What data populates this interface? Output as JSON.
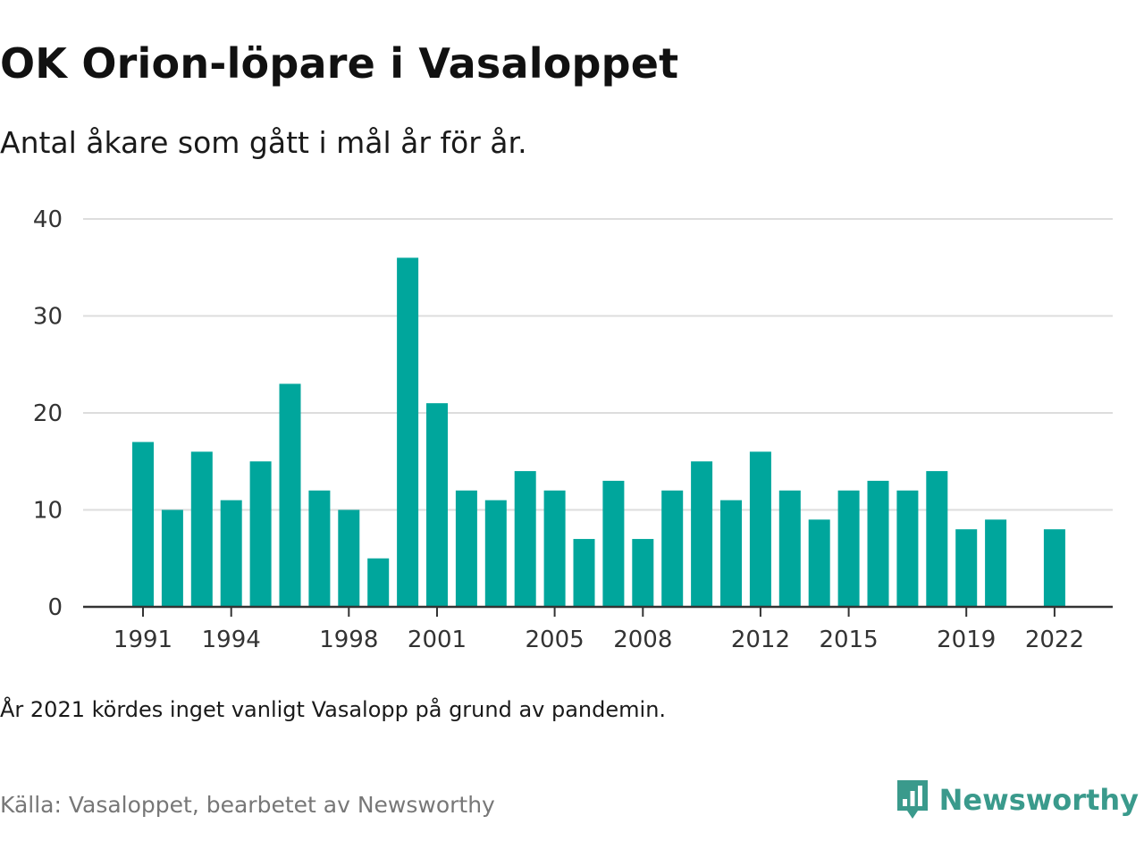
{
  "title": "OK Orion-löpare i Vasaloppet",
  "subtitle": "Antal åkare som gått i mål år för år.",
  "note": "År 2021 kördes inget vanligt Vasalopp på grund av pandemin.",
  "source": "Källa: Vasaloppet, bearbetet av Newsworthy",
  "brand": {
    "name": "Newsworthy",
    "icon": "newsworthy-logo-icon",
    "color": "#3a9a8c"
  },
  "colors": {
    "bar": "#00a69c",
    "grid": "#dddddd",
    "axis": "#333333"
  },
  "chart_data": {
    "type": "bar",
    "title": "OK Orion-löpare i Vasaloppet",
    "xlabel": "",
    "ylabel": "",
    "ylim": [
      0,
      40
    ],
    "y_ticks": [
      0,
      10,
      20,
      30,
      40
    ],
    "x_tick_labels": [
      "1991",
      "1994",
      "1998",
      "2001",
      "2005",
      "2008",
      "2012",
      "2015",
      "2019",
      "2022"
    ],
    "grid": true,
    "categories": [
      1991,
      1992,
      1993,
      1994,
      1995,
      1996,
      1997,
      1998,
      1999,
      2000,
      2001,
      2002,
      2003,
      2004,
      2005,
      2006,
      2007,
      2008,
      2009,
      2010,
      2011,
      2012,
      2013,
      2014,
      2015,
      2016,
      2017,
      2018,
      2019,
      2020,
      2021,
      2022
    ],
    "values": [
      17,
      10,
      16,
      11,
      15,
      23,
      12,
      10,
      5,
      36,
      21,
      12,
      11,
      14,
      12,
      7,
      13,
      7,
      12,
      15,
      11,
      16,
      12,
      9,
      12,
      13,
      12,
      14,
      8,
      9,
      null,
      8
    ]
  }
}
